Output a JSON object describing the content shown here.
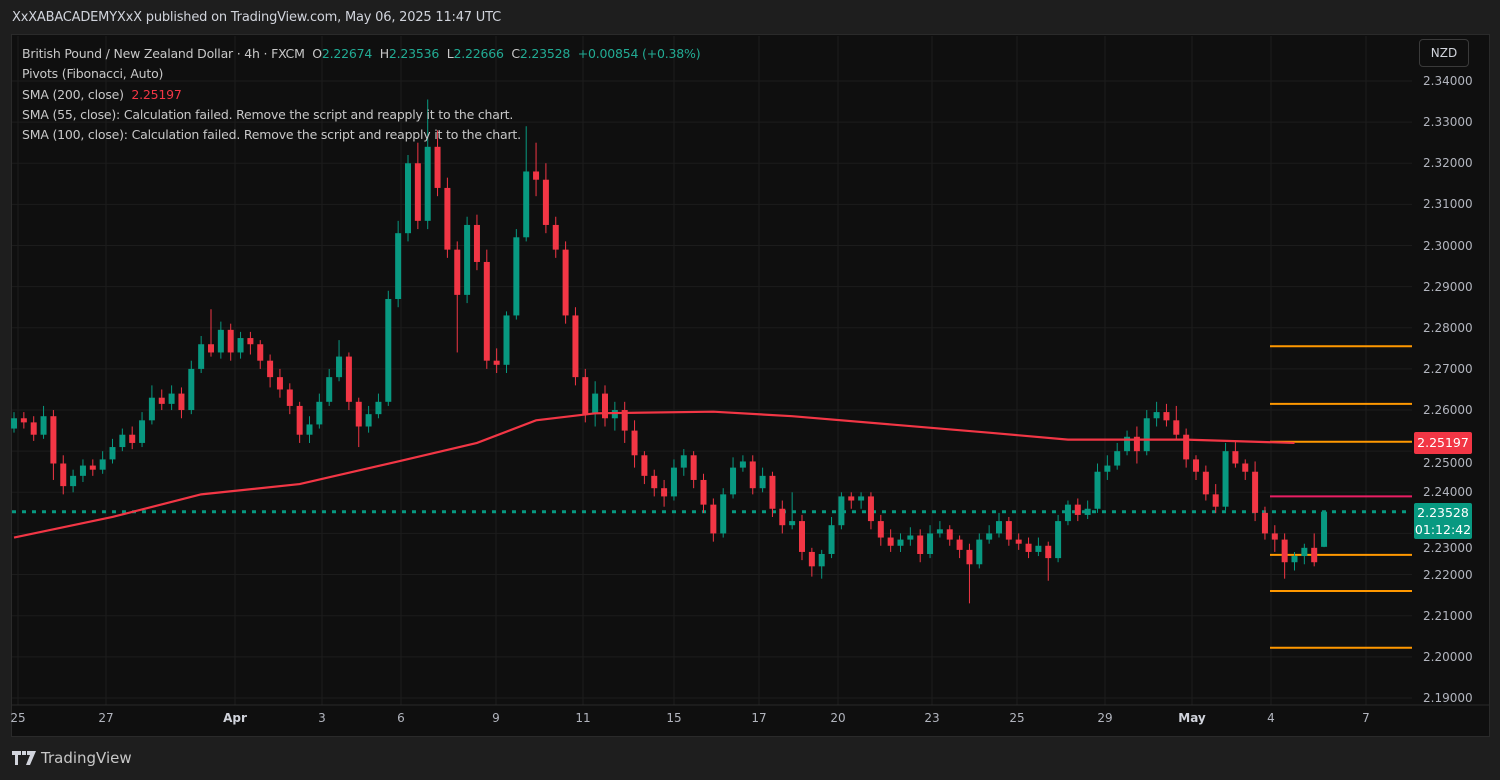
{
  "header": {
    "published": "XxXABACADEMYXxX published on TradingView.com, May 06, 2025 11:47 UTC"
  },
  "legend": {
    "symbol": "British Pound / New Zealand Dollar · 4h · FXCM",
    "o_label": "O",
    "o": "2.22674",
    "h_label": "H",
    "h": "2.23536",
    "l_label": "L",
    "l": "2.22666",
    "c_label": "C",
    "c": "2.23528",
    "change": "+0.00854 (+0.38%)",
    "pivots": "Pivots (Fibonacci, Auto)",
    "sma200": "SMA (200, close)",
    "sma200_value": "2.25197",
    "sma55": "SMA (55, close): Calculation failed. Remove the script and reapply it to the chart.",
    "sma100": "SMA (100, close): Calculation failed. Remove the script and reapply it to the chart."
  },
  "currency_button": "NZD",
  "price_axis": [
    "2.34000",
    "2.33000",
    "2.32000",
    "2.31000",
    "2.30000",
    "2.29000",
    "2.28000",
    "2.27000",
    "2.26000",
    "2.25000",
    "2.24000",
    "2.23000",
    "2.22000",
    "2.21000",
    "2.20000",
    "2.19000"
  ],
  "price_tags": {
    "sma": "2.25197",
    "last": "2.23528",
    "countdown": "01:12:42"
  },
  "time_axis": [
    {
      "label": "25",
      "bold": false
    },
    {
      "label": "27",
      "bold": false
    },
    {
      "label": "Apr",
      "bold": true
    },
    {
      "label": "3",
      "bold": false
    },
    {
      "label": "6",
      "bold": false
    },
    {
      "label": "9",
      "bold": false
    },
    {
      "label": "11",
      "bold": false
    },
    {
      "label": "15",
      "bold": false
    },
    {
      "label": "17",
      "bold": false
    },
    {
      "label": "20",
      "bold": false
    },
    {
      "label": "23",
      "bold": false
    },
    {
      "label": "25",
      "bold": false
    },
    {
      "label": "29",
      "bold": false
    },
    {
      "label": "May",
      "bold": true
    },
    {
      "label": "4",
      "bold": false
    },
    {
      "label": "7",
      "bold": false
    }
  ],
  "footer": {
    "brand": "TradingView"
  },
  "colors": {
    "up": "#089981",
    "down": "#f23645",
    "sma": "#f23645",
    "pivot": "#ff9800",
    "pivot_p": "#e91e63",
    "last_price": "#089981"
  },
  "chart_data": {
    "type": "candlestick",
    "symbol": "GBPNZD",
    "interval": "4h",
    "ylim": [
      2.19,
      2.34
    ],
    "grid": true,
    "last_price": 2.23528,
    "candles_ohlc": [
      [
        2.2555,
        2.2595,
        2.2545,
        2.258
      ],
      [
        2.258,
        2.2595,
        2.2555,
        2.257
      ],
      [
        2.257,
        2.2585,
        2.2525,
        2.254
      ],
      [
        2.254,
        2.261,
        2.253,
        2.2585
      ],
      [
        2.2585,
        2.26,
        2.243,
        2.247
      ],
      [
        2.247,
        2.249,
        2.2395,
        2.2415
      ],
      [
        2.2415,
        2.2455,
        2.24,
        2.244
      ],
      [
        2.244,
        2.248,
        2.2425,
        2.2465
      ],
      [
        2.2465,
        2.248,
        2.244,
        2.2455
      ],
      [
        2.2455,
        2.25,
        2.2445,
        2.248
      ],
      [
        2.248,
        2.253,
        2.247,
        2.251
      ],
      [
        2.251,
        2.2555,
        2.25,
        2.254
      ],
      [
        2.254,
        2.256,
        2.2505,
        2.252
      ],
      [
        2.252,
        2.2595,
        2.251,
        2.2575
      ],
      [
        2.2575,
        2.266,
        2.2565,
        2.263
      ],
      [
        2.263,
        2.265,
        2.26,
        2.2615
      ],
      [
        2.2615,
        2.266,
        2.26,
        2.264
      ],
      [
        2.264,
        2.2655,
        2.258,
        2.26
      ],
      [
        2.26,
        2.272,
        2.259,
        2.27
      ],
      [
        2.27,
        2.278,
        2.269,
        2.276
      ],
      [
        2.276,
        2.2845,
        2.273,
        2.274
      ],
      [
        2.274,
        2.2815,
        2.2725,
        2.2795
      ],
      [
        2.2795,
        2.281,
        2.272,
        2.274
      ],
      [
        2.274,
        2.279,
        2.2725,
        2.2775
      ],
      [
        2.2775,
        2.279,
        2.2735,
        2.276
      ],
      [
        2.276,
        2.277,
        2.27,
        2.272
      ],
      [
        2.272,
        2.2735,
        2.2655,
        2.268
      ],
      [
        2.268,
        2.27,
        2.263,
        2.265
      ],
      [
        2.265,
        2.2665,
        2.259,
        2.261
      ],
      [
        2.261,
        2.262,
        2.252,
        2.254
      ],
      [
        2.254,
        2.2585,
        2.252,
        2.2565
      ],
      [
        2.2565,
        2.264,
        2.2555,
        2.262
      ],
      [
        2.262,
        2.27,
        2.261,
        2.268
      ],
      [
        2.268,
        2.277,
        2.267,
        2.273
      ],
      [
        2.273,
        2.274,
        2.26,
        2.262
      ],
      [
        2.262,
        2.263,
        2.251,
        2.256
      ],
      [
        2.256,
        2.261,
        2.2545,
        2.259
      ],
      [
        2.259,
        2.264,
        2.258,
        2.262
      ],
      [
        2.262,
        2.289,
        2.261,
        2.287
      ],
      [
        2.287,
        2.306,
        2.285,
        2.303
      ],
      [
        2.303,
        2.322,
        2.301,
        2.32
      ],
      [
        2.32,
        2.325,
        2.304,
        2.306
      ],
      [
        2.306,
        2.3355,
        2.304,
        2.324
      ],
      [
        2.324,
        2.328,
        2.312,
        2.314
      ],
      [
        2.314,
        2.3165,
        2.297,
        2.299
      ],
      [
        2.299,
        2.301,
        2.274,
        2.288
      ],
      [
        2.288,
        2.307,
        2.286,
        2.305
      ],
      [
        2.305,
        2.3075,
        2.294,
        2.296
      ],
      [
        2.296,
        2.299,
        2.27,
        2.272
      ],
      [
        2.272,
        2.275,
        2.269,
        2.271
      ],
      [
        2.271,
        2.284,
        2.269,
        2.283
      ],
      [
        2.283,
        2.304,
        2.282,
        2.302
      ],
      [
        2.302,
        2.329,
        2.301,
        2.318
      ],
      [
        2.318,
        2.325,
        2.312,
        2.316
      ],
      [
        2.316,
        2.32,
        2.303,
        2.305
      ],
      [
        2.305,
        2.307,
        2.297,
        2.299
      ],
      [
        2.299,
        2.301,
        2.281,
        2.283
      ],
      [
        2.283,
        2.285,
        2.266,
        2.268
      ],
      [
        2.268,
        2.27,
        2.257,
        2.259
      ],
      [
        2.259,
        2.267,
        2.256,
        2.264
      ],
      [
        2.264,
        2.266,
        2.256,
        2.258
      ],
      [
        2.258,
        2.262,
        2.255,
        2.26
      ],
      [
        2.26,
        2.262,
        2.252,
        2.255
      ],
      [
        2.255,
        2.2575,
        2.246,
        2.249
      ],
      [
        2.249,
        2.25,
        2.242,
        2.244
      ],
      [
        2.244,
        2.2455,
        2.239,
        2.241
      ],
      [
        2.241,
        2.243,
        2.2365,
        2.239
      ],
      [
        2.239,
        2.248,
        2.238,
        2.246
      ],
      [
        2.246,
        2.2505,
        2.244,
        2.249
      ],
      [
        2.249,
        2.25,
        2.241,
        2.243
      ],
      [
        2.243,
        2.2445,
        2.235,
        2.237
      ],
      [
        2.237,
        2.2385,
        2.228,
        2.23
      ],
      [
        2.23,
        2.241,
        2.229,
        2.2395
      ],
      [
        2.2395,
        2.2485,
        2.2385,
        2.246
      ],
      [
        2.246,
        2.249,
        2.245,
        2.2475
      ],
      [
        2.2475,
        2.249,
        2.2395,
        2.241
      ],
      [
        2.241,
        2.246,
        2.24,
        2.244
      ],
      [
        2.244,
        2.245,
        2.234,
        2.236
      ],
      [
        2.236,
        2.238,
        2.23,
        2.232
      ],
      [
        2.232,
        2.24,
        2.231,
        2.233
      ],
      [
        2.233,
        2.2345,
        2.2235,
        2.2255
      ],
      [
        2.2255,
        2.2265,
        2.2195,
        2.222
      ],
      [
        2.222,
        2.226,
        2.219,
        2.225
      ],
      [
        2.225,
        2.234,
        2.224,
        2.232
      ],
      [
        2.232,
        2.24,
        2.231,
        2.239
      ],
      [
        2.239,
        2.24,
        2.236,
        2.238
      ],
      [
        2.238,
        2.24,
        2.236,
        2.239
      ],
      [
        2.239,
        2.24,
        2.231,
        2.233
      ],
      [
        2.233,
        2.2345,
        2.227,
        2.229
      ],
      [
        2.229,
        2.231,
        2.2255,
        2.227
      ],
      [
        2.227,
        2.23,
        2.2255,
        2.2285
      ],
      [
        2.2285,
        2.2315,
        2.227,
        2.2295
      ],
      [
        2.2295,
        2.231,
        2.223,
        2.225
      ],
      [
        2.225,
        2.232,
        2.224,
        2.23
      ],
      [
        2.23,
        2.233,
        2.229,
        2.231
      ],
      [
        2.231,
        2.232,
        2.227,
        2.2285
      ],
      [
        2.2285,
        2.2295,
        2.224,
        2.226
      ],
      [
        2.226,
        2.2275,
        2.213,
        2.2225
      ],
      [
        2.2225,
        2.23,
        2.2215,
        2.2285
      ],
      [
        2.2285,
        2.232,
        2.2275,
        2.23
      ],
      [
        2.23,
        2.235,
        2.229,
        2.233
      ],
      [
        2.233,
        2.234,
        2.227,
        2.2285
      ],
      [
        2.2285,
        2.23,
        2.226,
        2.2275
      ],
      [
        2.2275,
        2.229,
        2.224,
        2.2255
      ],
      [
        2.2255,
        2.229,
        2.2245,
        2.227
      ],
      [
        2.227,
        2.228,
        2.2185,
        2.224
      ],
      [
        2.224,
        2.2345,
        2.223,
        2.233
      ],
      [
        2.233,
        2.238,
        2.232,
        2.237
      ],
      [
        2.237,
        2.2385,
        2.233,
        2.2345
      ],
      [
        2.2345,
        2.238,
        2.2335,
        2.236
      ],
      [
        2.236,
        2.247,
        2.235,
        2.245
      ],
      [
        2.245,
        2.249,
        2.243,
        2.2465
      ],
      [
        2.2465,
        2.252,
        2.2455,
        2.25
      ],
      [
        2.25,
        2.255,
        2.249,
        2.2535
      ],
      [
        2.2535,
        2.256,
        2.247,
        2.25
      ],
      [
        2.25,
        2.26,
        2.249,
        2.258
      ],
      [
        2.258,
        2.262,
        2.256,
        2.2595
      ],
      [
        2.2595,
        2.2615,
        2.256,
        2.2575
      ],
      [
        2.2575,
        2.261,
        2.253,
        2.254
      ],
      [
        2.254,
        2.2555,
        2.246,
        2.248
      ],
      [
        2.248,
        2.249,
        2.243,
        2.245
      ],
      [
        2.245,
        2.2465,
        2.238,
        2.2395
      ],
      [
        2.2395,
        2.242,
        2.235,
        2.2365
      ],
      [
        2.2365,
        2.252,
        2.2355,
        2.25
      ],
      [
        2.25,
        2.2525,
        2.246,
        2.247
      ],
      [
        2.247,
        2.248,
        2.243,
        2.245
      ],
      [
        2.245,
        2.2475,
        2.233,
        2.235
      ],
      [
        2.235,
        2.2365,
        2.2285,
        2.23
      ],
      [
        2.23,
        2.232,
        2.2255,
        2.2285
      ],
      [
        2.2285,
        2.23,
        2.219,
        2.223
      ],
      [
        2.223,
        2.2255,
        2.221,
        2.2245
      ],
      [
        2.2245,
        2.2275,
        2.2225,
        2.2265
      ],
      [
        2.2265,
        2.23,
        2.222,
        2.223
      ],
      [
        2.22674,
        2.23536,
        2.22666,
        2.23528
      ]
    ],
    "sma200": [
      [
        0,
        2.229
      ],
      [
        10,
        2.234
      ],
      [
        19,
        2.2395
      ],
      [
        29,
        2.242
      ],
      [
        39,
        2.2475
      ],
      [
        47,
        2.252
      ],
      [
        53,
        2.2575
      ],
      [
        59,
        2.2592
      ],
      [
        71,
        2.2596
      ],
      [
        79,
        2.2585
      ],
      [
        89,
        2.2565
      ],
      [
        99,
        2.2545
      ],
      [
        107,
        2.2528
      ],
      [
        119,
        2.2528
      ],
      [
        130,
        2.252
      ]
    ],
    "pivot_levels": [
      {
        "value": 2.2755,
        "kind": "R3"
      },
      {
        "value": 2.2615,
        "kind": "R2"
      },
      {
        "value": 2.2523,
        "kind": "R1"
      },
      {
        "value": 2.239,
        "kind": "P"
      },
      {
        "value": 2.2248,
        "kind": "S1"
      },
      {
        "value": 2.216,
        "kind": "S2"
      },
      {
        "value": 2.2022,
        "kind": "S3"
      }
    ]
  }
}
